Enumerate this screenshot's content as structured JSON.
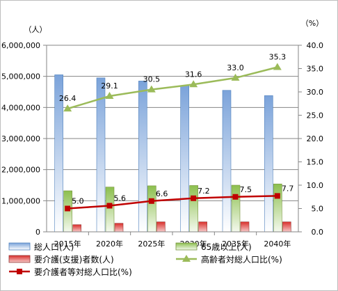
{
  "chart_data": {
    "type": "bar",
    "categories": [
      "2015年",
      "2020年",
      "2025年",
      "2030年",
      "2035年",
      "2040年"
    ],
    "y_left_unit": "（人）",
    "y_right_unit": "（%）",
    "y_left_ticks": [
      "0",
      "1,000,000",
      "2,000,000",
      "3,000,000",
      "4,000,000",
      "5,000,000",
      "6,000,000"
    ],
    "y_right_ticks": [
      "0.0",
      "5.0",
      "10.0",
      "15.0",
      "20.0",
      "25.0",
      "30.0",
      "35.0",
      "40.0"
    ],
    "ylim_left": [
      0,
      6000000
    ],
    "ylim_right": [
      0,
      40
    ],
    "grid": true,
    "series": [
      {
        "name": "総人口(人)",
        "type": "bar",
        "axis": "left",
        "color": "#8db3e2",
        "values": [
          5050000,
          4950000,
          4850000,
          4700000,
          4550000,
          4380000
        ]
      },
      {
        "name": "65歳以上(人)",
        "type": "bar",
        "axis": "left",
        "color": "#9bbb59",
        "values": [
          1320000,
          1440000,
          1480000,
          1490000,
          1500000,
          1540000
        ]
      },
      {
        "name": "要介護(支援)者数(人)",
        "type": "bar",
        "axis": "left",
        "color": "#c0504d",
        "values": [
          230000,
          275000,
          320000,
          320000,
          320000,
          320000
        ]
      },
      {
        "name": "高齢者対総人口比(%)",
        "type": "line",
        "axis": "right",
        "color": "#9bbb59",
        "values": [
          26.4,
          29.1,
          30.5,
          31.6,
          33.0,
          35.3
        ],
        "labels": [
          "26.4",
          "29.1",
          "30.5",
          "31.6",
          "33.0",
          "35.3"
        ]
      },
      {
        "name": "要介護者等対総人口比(%)",
        "type": "line",
        "axis": "right",
        "color": "#c00000",
        "values": [
          5.0,
          5.6,
          6.6,
          7.2,
          7.5,
          7.7
        ],
        "labels": [
          "5.0",
          "5.6",
          "6.6",
          "7.2",
          "7.5",
          "7.7"
        ]
      }
    ]
  }
}
